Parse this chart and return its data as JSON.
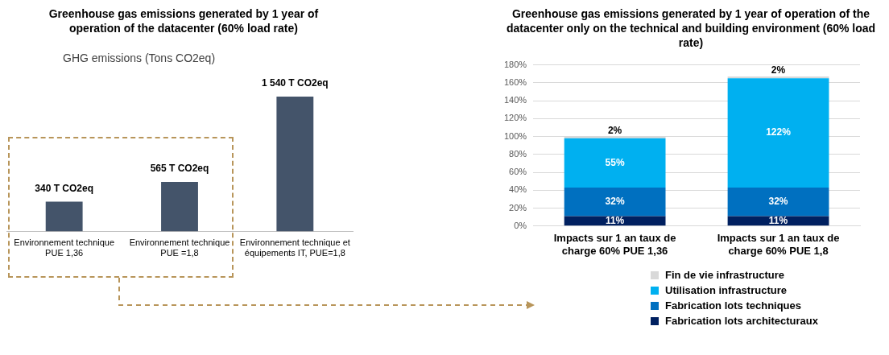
{
  "chart_data": [
    {
      "type": "bar",
      "title": "Greenhouse gas emissions generated by 1 year of operation of the datacenter (60% load rate)",
      "subtitle": "GHG emissions (Tons CO2eq)",
      "categories": [
        "Environnement technique PUE 1,36",
        "Environnement technique PUE =1,8",
        "Environnement technique et équipements IT, PUE=1,8"
      ],
      "values": [
        340,
        565,
        1540
      ],
      "color": "#44546a",
      "value_labels": [
        "340 T CO2eq",
        "565 T CO2eq",
        "1 540 T CO2eq"
      ]
    },
    {
      "type": "bar",
      "title": "Greenhouse gas emissions generated by 1 year of operation of the datacenter only on the technical and building environment (60% load rate)",
      "stacked": true,
      "categories": [
        "Impacts sur 1 an taux de charge 60% PUE 1,36",
        "Impacts sur 1 an taux de charge 60% PUE 1,8"
      ],
      "series": [
        {
          "name": "Fabrication lots architecturaux",
          "color": "#002060",
          "values": [
            11,
            11
          ],
          "value_labels": [
            "11%",
            "11%"
          ]
        },
        {
          "name": "Fabrication lots techniques",
          "color": "#0070c0",
          "values": [
            32,
            32
          ],
          "value_labels": [
            "32%",
            "32%"
          ]
        },
        {
          "name": "Utilisation infrastructure",
          "color": "#00b0f0",
          "values": [
            55,
            122
          ],
          "value_labels": [
            "55%",
            "122%"
          ]
        },
        {
          "name": "Fin de vie infrastructure",
          "color": "#d9d9d9",
          "values": [
            2,
            2
          ],
          "value_labels": [
            "2%",
            "2%"
          ]
        }
      ],
      "ylim": [
        0,
        180
      ],
      "yticks": [
        {
          "value": 0,
          "label": "0%"
        },
        {
          "value": 20,
          "label": "20%"
        },
        {
          "value": 40,
          "label": "40%"
        },
        {
          "value": 60,
          "label": "60%"
        },
        {
          "value": 80,
          "label": "80%"
        },
        {
          "value": 100,
          "label": "100%"
        },
        {
          "value": 120,
          "label": "120%"
        },
        {
          "value": 140,
          "label": "140%"
        },
        {
          "value": 160,
          "label": "160%"
        },
        {
          "value": 180,
          "label": "180%"
        }
      ],
      "grid": "y",
      "legend": "bottom"
    }
  ]
}
